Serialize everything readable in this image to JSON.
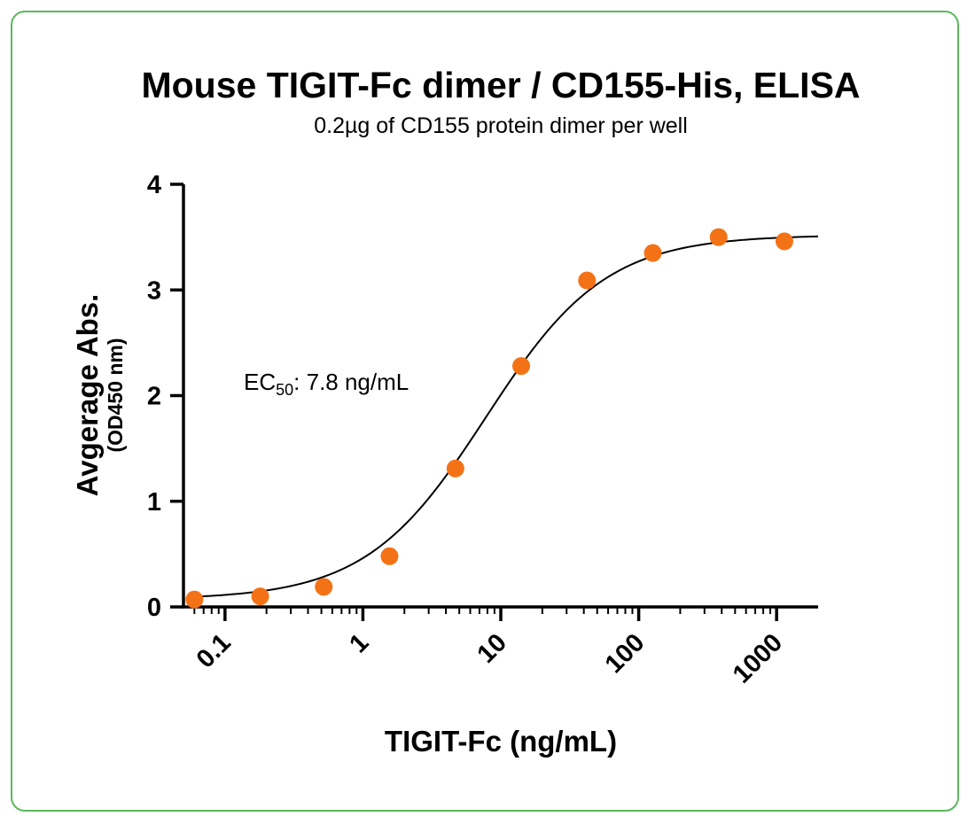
{
  "frame_color": "#5cb85c",
  "point_color": "#f47216",
  "chart_data": {
    "type": "scatter",
    "title": "Mouse TIGIT-Fc dimer / CD155-His, ELISA",
    "subtitle": "0.2µg of CD155 protein dimer per well",
    "xlabel": "TIGIT-Fc (ng/mL)",
    "ylabel": "Avgerage Abs.",
    "ylabel_sub": "(OD450 nm)",
    "x_scale": "log",
    "xlim": [
      0.05,
      2000
    ],
    "ylim": [
      0,
      4
    ],
    "x_ticks": [
      0.1,
      1,
      10,
      100,
      1000
    ],
    "x_tick_labels": [
      "0.1",
      "1",
      "10",
      "100",
      "1000"
    ],
    "y_ticks": [
      0,
      1,
      2,
      3,
      4
    ],
    "y_tick_labels": [
      "0",
      "1",
      "2",
      "3",
      "4"
    ],
    "grid": false,
    "points": [
      {
        "x": 0.06,
        "y": 0.07
      },
      {
        "x": 0.18,
        "y": 0.1
      },
      {
        "x": 0.52,
        "y": 0.19
      },
      {
        "x": 1.56,
        "y": 0.48
      },
      {
        "x": 4.69,
        "y": 1.31
      },
      {
        "x": 14.06,
        "y": 2.28
      },
      {
        "x": 42.19,
        "y": 3.09
      },
      {
        "x": 126.6,
        "y": 3.35
      },
      {
        "x": 379.7,
        "y": 3.5
      },
      {
        "x": 1139,
        "y": 3.46
      }
    ],
    "fit": {
      "bottom": 0.07,
      "top": 3.52,
      "ec50": 7.8,
      "hill": 1.0
    },
    "annotation": {
      "prefix": "EC",
      "subscript": "50",
      "text": ": 7.8 ng/mL"
    }
  }
}
